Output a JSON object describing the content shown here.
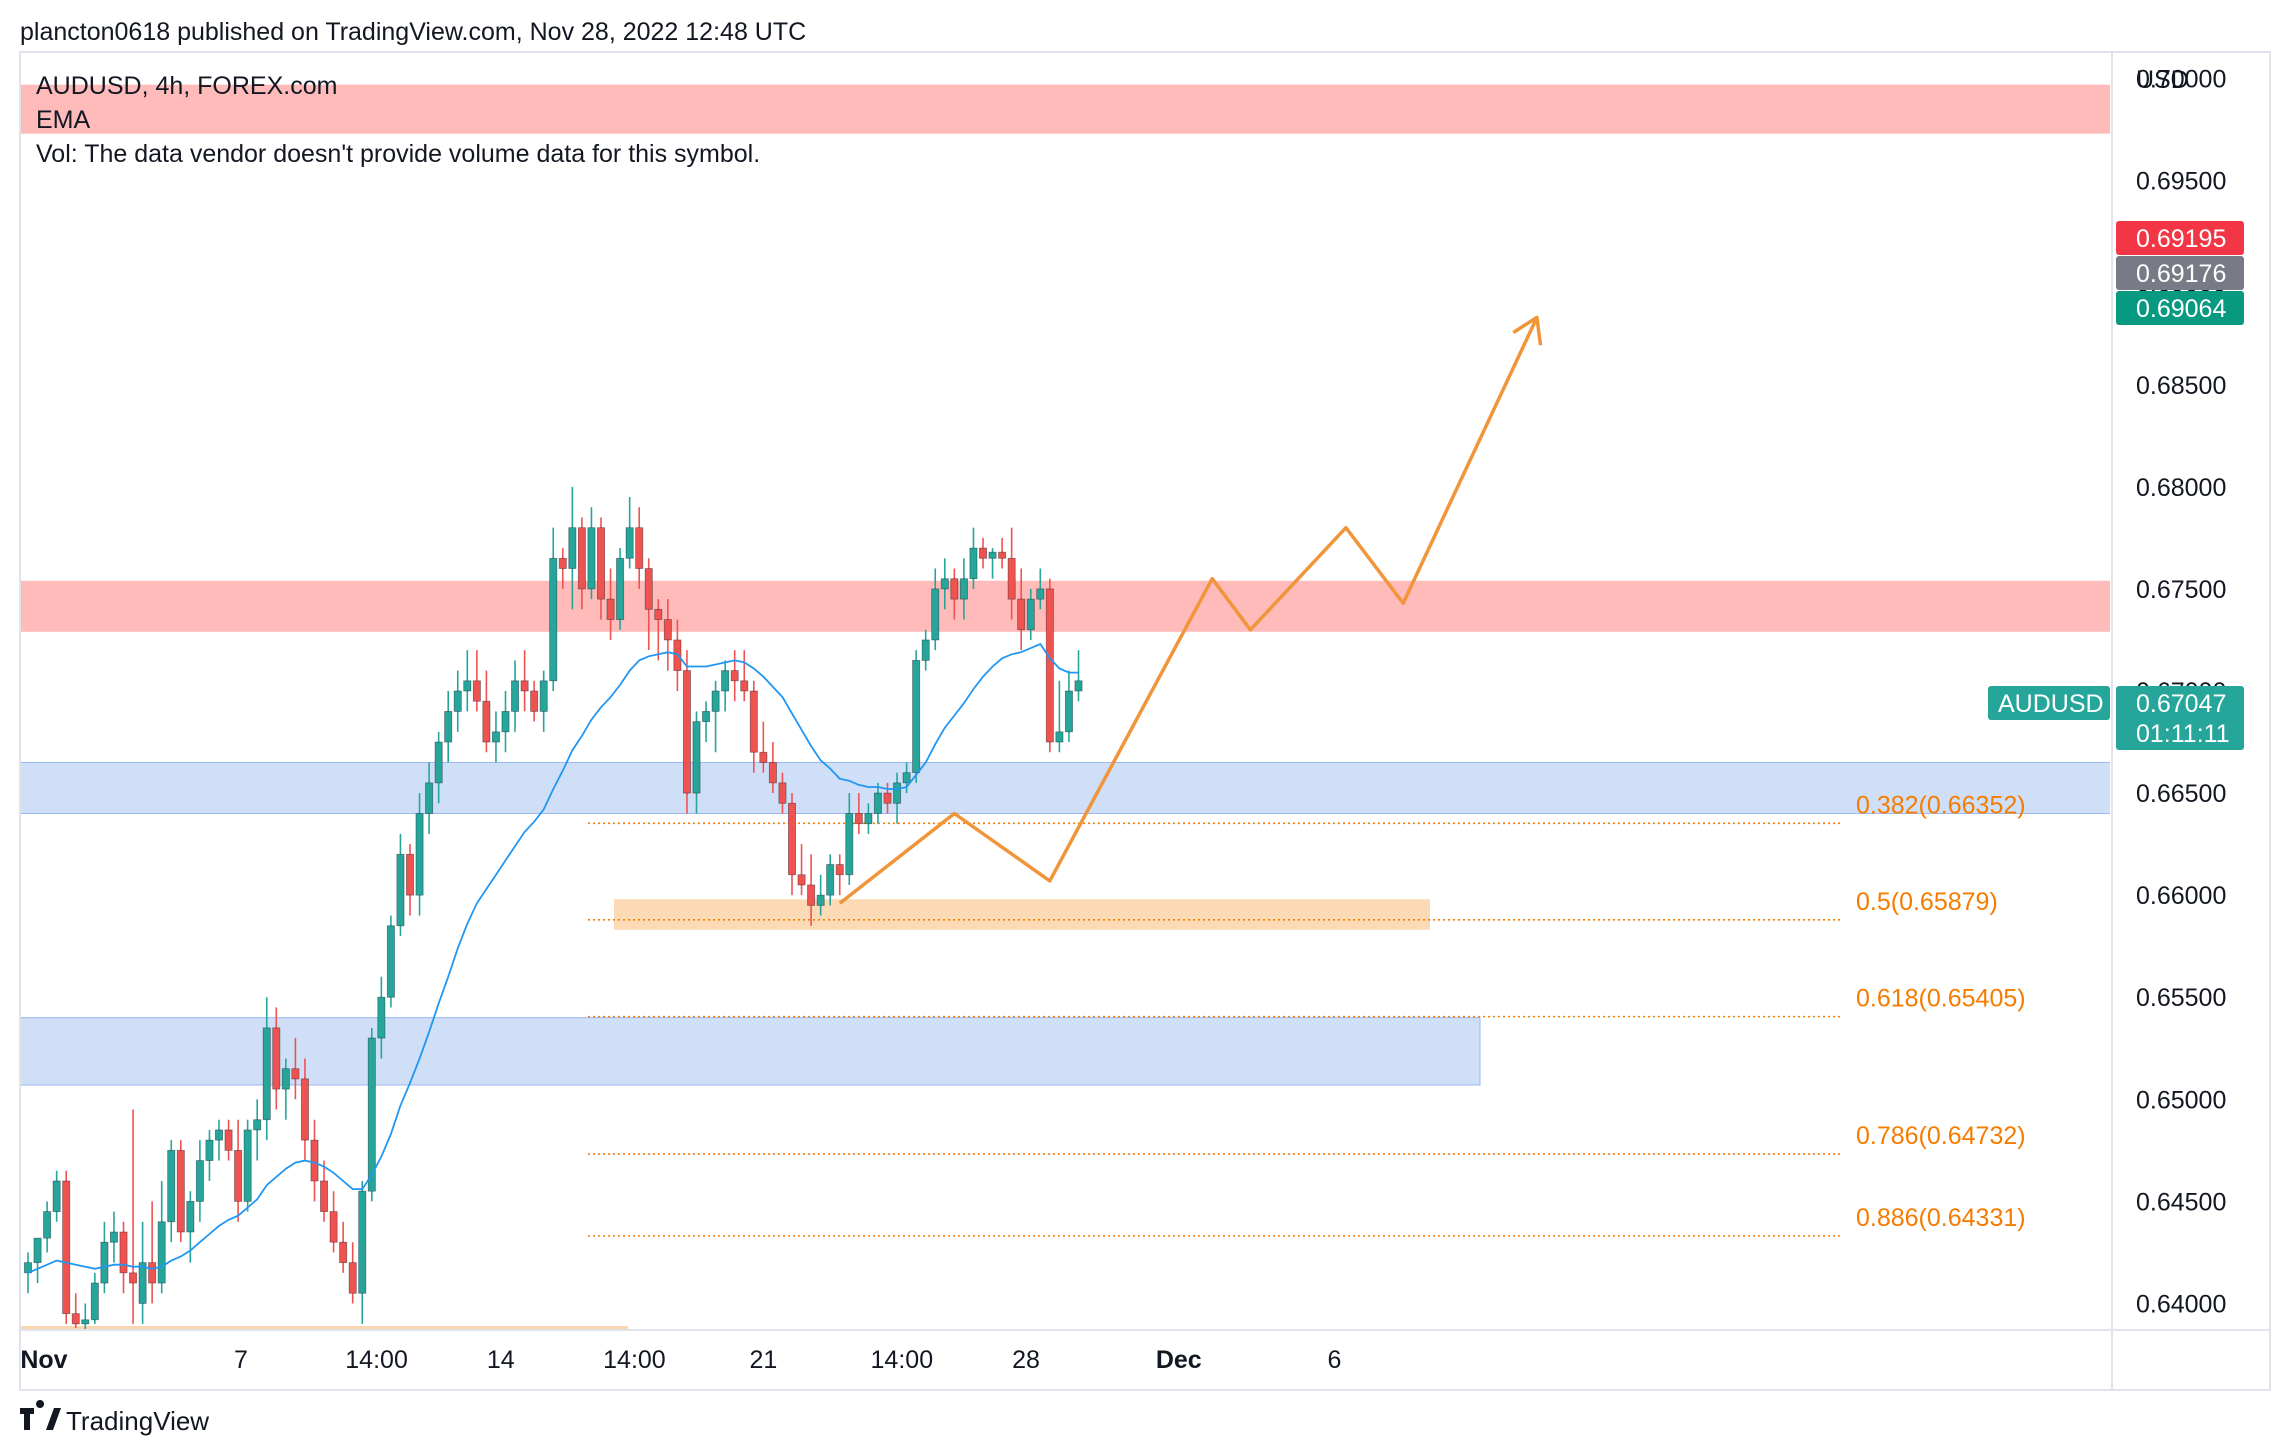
{
  "header": {
    "publisher_line": "plancton0618 published on TradingView.com, Nov 28, 2022 12:48 UTC"
  },
  "legend": {
    "symbol_line": "AUDUSD, 4h, FOREX.com",
    "indicator": "EMA",
    "vol_notice": "Vol: The data vendor doesn't provide volume data for this symbol."
  },
  "price_axis": {
    "currency": "USD",
    "ticks": [
      "0.70000",
      "0.69500",
      "0.69000",
      "0.68500",
      "0.68000",
      "0.67500",
      "0.67000",
      "0.66500",
      "0.66000",
      "0.65500",
      "0.65000",
      "0.64500",
      "0.64000"
    ]
  },
  "price_tags": {
    "ask": {
      "value": "0.69195",
      "color": "#f23645"
    },
    "mid": {
      "value": "0.69176",
      "color": "#787b86"
    },
    "bid": {
      "value": "0.69064",
      "color": "#089981"
    },
    "symbol": {
      "name": "AUDUSD",
      "value": "0.67047",
      "countdown": "01:11:11",
      "color": "#26a69a"
    }
  },
  "time_axis": {
    "labels": [
      "Nov",
      "7",
      "14:00",
      "14",
      "14:00",
      "21",
      "14:00",
      "28",
      "Dec",
      "6"
    ]
  },
  "fib_levels": [
    {
      "label": "0.382(0.66352)",
      "value": 0.66352
    },
    {
      "label": "0.5(0.65879)",
      "value": 0.65879
    },
    {
      "label": "0.618(0.65405)",
      "value": 0.65405
    },
    {
      "label": "0.786(0.64732)",
      "value": 0.64732
    },
    {
      "label": "0.886(0.64331)",
      "value": 0.64331
    }
  ],
  "zones": [
    {
      "kind": "resistance",
      "from": 0.6973,
      "to": 0.6997,
      "color": "#ffb3b3"
    },
    {
      "kind": "resistance",
      "from": 0.6729,
      "to": 0.6754,
      "color": "#ffb3b3"
    },
    {
      "kind": "support",
      "from": 0.664,
      "to": 0.6665,
      "color": "#c7d9f7"
    },
    {
      "kind": "support",
      "from": 0.6507,
      "to": 0.654,
      "color": "#c7d9f7"
    },
    {
      "kind": "demand",
      "from": 0.6583,
      "to": 0.6598,
      "color": "#fcd6ae"
    }
  ],
  "colors": {
    "up": "#26a69a",
    "down": "#ef5350",
    "ema": "#2196f3",
    "fib": "#f57c00",
    "projection": "#f0953a"
  },
  "chart_data": {
    "type": "candlestick",
    "symbol": "AUDUSD",
    "timeframe": "4h",
    "ylim": [
      0.6387,
      0.7013
    ],
    "grid": false,
    "candles": [
      [
        0.6415,
        0.6425,
        0.6405,
        0.642
      ],
      [
        0.642,
        0.643,
        0.641,
        0.6432
      ],
      [
        0.6432,
        0.645,
        0.6425,
        0.6445
      ],
      [
        0.6445,
        0.6465,
        0.644,
        0.646
      ],
      [
        0.646,
        0.6465,
        0.639,
        0.6395
      ],
      [
        0.6395,
        0.6405,
        0.6388,
        0.639
      ],
      [
        0.639,
        0.64,
        0.6385,
        0.6392
      ],
      [
        0.6392,
        0.6415,
        0.639,
        0.641
      ],
      [
        0.641,
        0.644,
        0.6405,
        0.643
      ],
      [
        0.643,
        0.6445,
        0.642,
        0.6435
      ],
      [
        0.6435,
        0.644,
        0.6405,
        0.6415
      ],
      [
        0.6415,
        0.6495,
        0.639,
        0.641
      ],
      [
        0.64,
        0.644,
        0.639,
        0.642
      ],
      [
        0.642,
        0.645,
        0.64,
        0.641
      ],
      [
        0.641,
        0.646,
        0.6405,
        0.644
      ],
      [
        0.644,
        0.648,
        0.643,
        0.6475
      ],
      [
        0.6475,
        0.648,
        0.643,
        0.6435
      ],
      [
        0.6435,
        0.6455,
        0.642,
        0.645
      ],
      [
        0.645,
        0.648,
        0.644,
        0.647
      ],
      [
        0.647,
        0.6485,
        0.646,
        0.648
      ],
      [
        0.648,
        0.649,
        0.647,
        0.6485
      ],
      [
        0.6485,
        0.649,
        0.647,
        0.6475
      ],
      [
        0.6475,
        0.649,
        0.644,
        0.645
      ],
      [
        0.645,
        0.649,
        0.6445,
        0.6485
      ],
      [
        0.6485,
        0.65,
        0.647,
        0.649
      ],
      [
        0.649,
        0.655,
        0.648,
        0.6535
      ],
      [
        0.6535,
        0.6545,
        0.6495,
        0.6505
      ],
      [
        0.6505,
        0.652,
        0.649,
        0.6515
      ],
      [
        0.6515,
        0.653,
        0.65,
        0.651
      ],
      [
        0.651,
        0.652,
        0.647,
        0.648
      ],
      [
        0.648,
        0.649,
        0.645,
        0.646
      ],
      [
        0.646,
        0.647,
        0.644,
        0.6445
      ],
      [
        0.6445,
        0.6455,
        0.6425,
        0.643
      ],
      [
        0.643,
        0.644,
        0.6415,
        0.642
      ],
      [
        0.642,
        0.643,
        0.64,
        0.6405
      ],
      [
        0.6405,
        0.646,
        0.639,
        0.6455
      ],
      [
        0.6455,
        0.6535,
        0.645,
        0.653
      ],
      [
        0.653,
        0.656,
        0.652,
        0.655
      ],
      [
        0.655,
        0.659,
        0.6545,
        0.6585
      ],
      [
        0.6585,
        0.663,
        0.658,
        0.662
      ],
      [
        0.662,
        0.6625,
        0.659,
        0.66
      ],
      [
        0.66,
        0.665,
        0.659,
        0.664
      ],
      [
        0.664,
        0.6665,
        0.663,
        0.6655
      ],
      [
        0.6655,
        0.668,
        0.6645,
        0.6675
      ],
      [
        0.6675,
        0.67,
        0.6665,
        0.669
      ],
      [
        0.669,
        0.671,
        0.668,
        0.67
      ],
      [
        0.67,
        0.672,
        0.669,
        0.6705
      ],
      [
        0.6705,
        0.672,
        0.669,
        0.6695
      ],
      [
        0.6695,
        0.671,
        0.667,
        0.6675
      ],
      [
        0.6675,
        0.669,
        0.6665,
        0.668
      ],
      [
        0.668,
        0.67,
        0.667,
        0.669
      ],
      [
        0.669,
        0.6715,
        0.668,
        0.6705
      ],
      [
        0.6705,
        0.672,
        0.669,
        0.67
      ],
      [
        0.67,
        0.6705,
        0.6685,
        0.669
      ],
      [
        0.669,
        0.671,
        0.668,
        0.6705
      ],
      [
        0.6705,
        0.678,
        0.67,
        0.6765
      ],
      [
        0.6765,
        0.677,
        0.675,
        0.676
      ],
      [
        0.676,
        0.68,
        0.674,
        0.678
      ],
      [
        0.678,
        0.6785,
        0.674,
        0.675
      ],
      [
        0.675,
        0.679,
        0.6745,
        0.678
      ],
      [
        0.678,
        0.6785,
        0.6735,
        0.6745
      ],
      [
        0.6745,
        0.676,
        0.6725,
        0.6735
      ],
      [
        0.6735,
        0.677,
        0.673,
        0.6765
      ],
      [
        0.6765,
        0.6795,
        0.676,
        0.678
      ],
      [
        0.678,
        0.679,
        0.675,
        0.676
      ],
      [
        0.676,
        0.6765,
        0.672,
        0.674
      ],
      [
        0.674,
        0.6745,
        0.6715,
        0.6735
      ],
      [
        0.6735,
        0.6745,
        0.671,
        0.6725
      ],
      [
        0.6725,
        0.6735,
        0.67,
        0.671
      ],
      [
        0.671,
        0.672,
        0.664,
        0.665
      ],
      [
        0.665,
        0.669,
        0.664,
        0.6685
      ],
      [
        0.6685,
        0.6695,
        0.6675,
        0.669
      ],
      [
        0.669,
        0.6705,
        0.667,
        0.67
      ],
      [
        0.67,
        0.6715,
        0.669,
        0.671
      ],
      [
        0.671,
        0.672,
        0.6695,
        0.6705
      ],
      [
        0.6705,
        0.672,
        0.6695,
        0.67
      ],
      [
        0.67,
        0.6705,
        0.666,
        0.667
      ],
      [
        0.667,
        0.6685,
        0.666,
        0.6665
      ],
      [
        0.6665,
        0.6675,
        0.665,
        0.6655
      ],
      [
        0.6655,
        0.666,
        0.664,
        0.6645
      ],
      [
        0.6645,
        0.665,
        0.66,
        0.661
      ],
      [
        0.661,
        0.6625,
        0.66,
        0.6605
      ],
      [
        0.6605,
        0.662,
        0.6585,
        0.6595
      ],
      [
        0.6595,
        0.661,
        0.659,
        0.66
      ],
      [
        0.66,
        0.662,
        0.6595,
        0.6615
      ],
      [
        0.6615,
        0.662,
        0.66,
        0.661
      ],
      [
        0.661,
        0.665,
        0.6605,
        0.664
      ],
      [
        0.664,
        0.665,
        0.663,
        0.6635
      ],
      [
        0.6635,
        0.6645,
        0.663,
        0.664
      ],
      [
        0.664,
        0.6655,
        0.6635,
        0.665
      ],
      [
        0.665,
        0.6655,
        0.664,
        0.6645
      ],
      [
        0.6645,
        0.666,
        0.6635,
        0.6655
      ],
      [
        0.6655,
        0.6665,
        0.665,
        0.666
      ],
      [
        0.666,
        0.672,
        0.6655,
        0.6715
      ],
      [
        0.6715,
        0.673,
        0.671,
        0.6725
      ],
      [
        0.6725,
        0.676,
        0.672,
        0.675
      ],
      [
        0.675,
        0.6765,
        0.674,
        0.6755
      ],
      [
        0.6755,
        0.676,
        0.6735,
        0.6745
      ],
      [
        0.6745,
        0.6765,
        0.6735,
        0.6755
      ],
      [
        0.6755,
        0.678,
        0.675,
        0.677
      ],
      [
        0.677,
        0.6775,
        0.676,
        0.6765
      ],
      [
        0.6765,
        0.677,
        0.6755,
        0.6768
      ],
      [
        0.6768,
        0.6775,
        0.676,
        0.6765
      ],
      [
        0.6765,
        0.678,
        0.6735,
        0.6745
      ],
      [
        0.6745,
        0.676,
        0.672,
        0.673
      ],
      [
        0.673,
        0.675,
        0.6725,
        0.6745
      ],
      [
        0.6745,
        0.676,
        0.674,
        0.675
      ],
      [
        0.675,
        0.6755,
        0.667,
        0.6675
      ],
      [
        0.6675,
        0.6705,
        0.667,
        0.668
      ],
      [
        0.668,
        0.671,
        0.6675,
        0.67
      ],
      [
        0.67,
        0.672,
        0.6695,
        0.6705
      ]
    ],
    "ema": [
      0.6415,
      0.6417,
      0.6419,
      0.6421,
      0.642,
      0.6419,
      0.6418,
      0.6417,
      0.6418,
      0.6419,
      0.6419,
      0.6418,
      0.6418,
      0.6417,
      0.6418,
      0.6421,
      0.6423,
      0.6426,
      0.643,
      0.6434,
      0.6438,
      0.6441,
      0.6443,
      0.6447,
      0.6451,
      0.6458,
      0.6462,
      0.6466,
      0.6469,
      0.647,
      0.6469,
      0.6467,
      0.6464,
      0.646,
      0.6456,
      0.6456,
      0.6463,
      0.6472,
      0.6483,
      0.6497,
      0.6508,
      0.652,
      0.6533,
      0.6547,
      0.656,
      0.6574,
      0.6586,
      0.6596,
      0.6603,
      0.661,
      0.6617,
      0.6624,
      0.6631,
      0.6636,
      0.6642,
      0.6652,
      0.6661,
      0.6671,
      0.6678,
      0.6686,
      0.6692,
      0.6697,
      0.6703,
      0.671,
      0.6715,
      0.6717,
      0.6718,
      0.6719,
      0.6718,
      0.6712,
      0.6712,
      0.6712,
      0.6713,
      0.6714,
      0.6715,
      0.6714,
      0.6711,
      0.6707,
      0.6702,
      0.6697,
      0.6689,
      0.6681,
      0.6673,
      0.6666,
      0.6662,
      0.6657,
      0.6656,
      0.6654,
      0.6653,
      0.6653,
      0.6652,
      0.6652,
      0.6653,
      0.6659,
      0.6665,
      0.6674,
      0.6682,
      0.6688,
      0.6694,
      0.6701,
      0.6707,
      0.6712,
      0.6716,
      0.6718,
      0.6719,
      0.6721,
      0.6723,
      0.6716,
      0.6711,
      0.6709,
      0.6709
    ],
    "projection": [
      [
        85,
        0.6596
      ],
      [
        97,
        0.664
      ],
      [
        107,
        0.6607
      ],
      [
        124,
        0.6755
      ],
      [
        128,
        0.673
      ],
      [
        138,
        0.678
      ],
      [
        144,
        0.6743
      ],
      [
        158,
        0.6883
      ]
    ]
  }
}
